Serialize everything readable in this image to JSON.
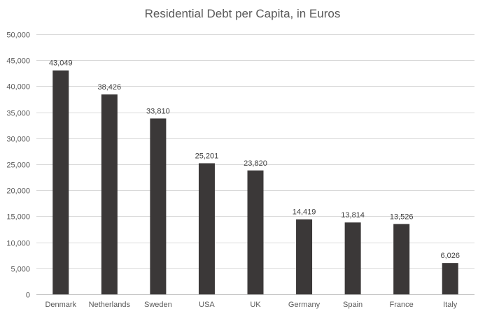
{
  "chart_data": {
    "type": "bar",
    "title": "Residential Debt per Capita, in Euros",
    "xlabel": "",
    "ylabel": "",
    "categories": [
      "Denmark",
      "Netherlands",
      "Sweden",
      "USA",
      "UK",
      "Germany",
      "Spain",
      "France",
      "Italy"
    ],
    "values": [
      43049,
      38426,
      33810,
      25201,
      23820,
      14419,
      13814,
      13526,
      6026
    ],
    "data_labels": [
      "43,049",
      "38,426",
      "33,810",
      "25,201",
      "23,820",
      "14,419",
      "13,814",
      "13,526",
      "6,026"
    ],
    "ylim": [
      0,
      50000
    ],
    "y_ticks": [
      0,
      5000,
      10000,
      15000,
      20000,
      25000,
      30000,
      35000,
      40000,
      45000,
      50000
    ],
    "y_tick_labels": [
      "0",
      "5,000",
      "10,000",
      "15,000",
      "20,000",
      "25,000",
      "30,000",
      "35,000",
      "40,000",
      "45,000",
      "50,000"
    ],
    "grid": true,
    "legend": "none",
    "colors": {
      "bar": "#3b3838",
      "grid": "#d9d9d9",
      "axis": "#bfbfbf",
      "text": "#595959"
    }
  }
}
